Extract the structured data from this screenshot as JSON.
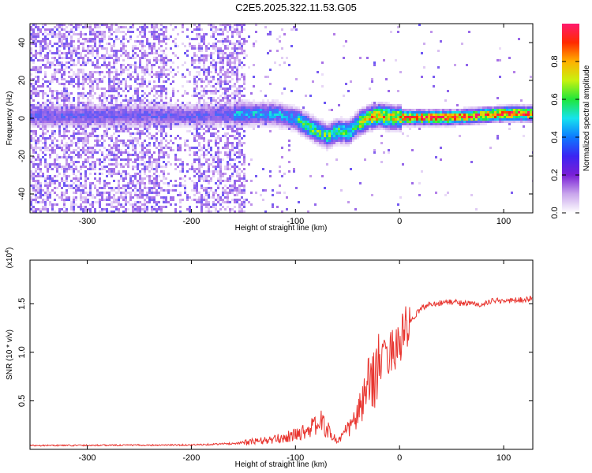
{
  "title": "C2E5.2025.322.11.53.G05",
  "chart_data": [
    {
      "type": "heatmap",
      "xlabel": "Height of straight line (km)",
      "ylabel": "Frequency (Hz)",
      "xlim": [
        -355,
        128
      ],
      "ylim": [
        -50,
        50
      ],
      "x_ticks": [
        -300,
        -200,
        -100,
        0,
        100
      ],
      "y_ticks": [
        -40,
        -20,
        0,
        20,
        40
      ],
      "colorbar": {
        "label": "Normalized spectral amplitude",
        "range": [
          0,
          1
        ],
        "ticks": [
          0.0,
          0.2,
          0.4,
          0.6,
          0.8
        ],
        "tick_labels": [
          "0.0",
          "0.2",
          "0.4",
          "0.6",
          "0.8"
        ],
        "colors": [
          "#ffffff",
          "#c9a6ec",
          "#7a1fd6",
          "#3c24f2",
          "#0d79ff",
          "#16e3ee",
          "#1fe63a",
          "#c8f20f",
          "#ffb000",
          "#ff2a00",
          "#ff1a6e"
        ]
      },
      "ridge": {
        "x": [
          -355,
          -300,
          -250,
          -200,
          -150,
          -120,
          -100,
          -85,
          -70,
          -60,
          -50,
          -40,
          -30,
          -20,
          -10,
          0,
          50,
          100,
          128
        ],
        "y": [
          2,
          2,
          2,
          2,
          3,
          3,
          0,
          -5,
          -9,
          -6,
          -7,
          -2,
          1,
          2,
          1,
          1,
          1,
          3,
          3
        ]
      }
    },
    {
      "type": "line",
      "xlabel": "Height of straight line (km)",
      "ylabel": "SNR (10 * v/v)",
      "multiplier": "(x10",
      "multiplier_exp": "4",
      "multiplier_close": ")",
      "xlim": [
        -355,
        128
      ],
      "ylim": [
        0,
        19500
      ],
      "x_ticks": [
        -300,
        -200,
        -100,
        0,
        100
      ],
      "y_ticks": [
        5000,
        10000,
        15000
      ],
      "y_tick_labels": [
        "0.5",
        "1.0",
        "1.5"
      ],
      "color": "#e8352f",
      "envelope": {
        "x": [
          -355,
          -200,
          -160,
          -120,
          -100,
          -85,
          -75,
          -60,
          -50,
          -40,
          -30,
          -20,
          -10,
          0,
          10,
          20,
          30,
          50,
          80,
          90,
          100,
          128
        ],
        "y": [
          400,
          450,
          600,
          1000,
          1500,
          2200,
          2800,
          800,
          2000,
          3500,
          6500,
          8500,
          10000,
          11000,
          13000,
          14500,
          15000,
          15200,
          14900,
          15300,
          15300,
          15500
        ]
      }
    }
  ]
}
